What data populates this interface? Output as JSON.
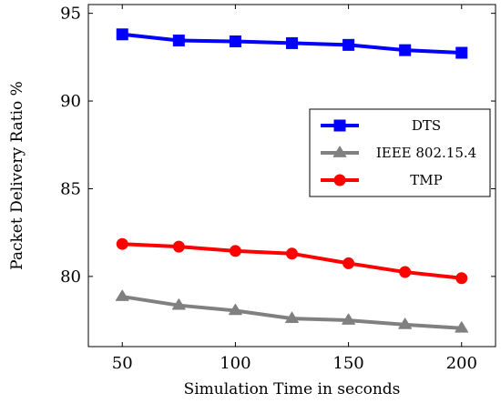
{
  "chart_data": {
    "type": "line",
    "xlabel": "Simulation Time in seconds",
    "ylabel": "Packet Delivery Ratio %",
    "x": [
      50,
      75,
      100,
      125,
      150,
      175,
      200
    ],
    "xlim": [
      35,
      215
    ],
    "ylim": [
      76,
      95.5
    ],
    "xticks": [
      50,
      100,
      150,
      200
    ],
    "yticks": [
      80,
      85,
      90,
      95
    ],
    "legend_position": "center-right",
    "grid": false,
    "series": [
      {
        "name": "DTS",
        "color": "#0000ff",
        "marker": "square",
        "values": [
          93.8,
          93.45,
          93.4,
          93.3,
          93.2,
          92.9,
          92.75
        ]
      },
      {
        "name": "IEEE 802.15.4",
        "color": "#808080",
        "marker": "triangle",
        "values": [
          78.85,
          78.35,
          78.05,
          77.6,
          77.5,
          77.25,
          77.05
        ]
      },
      {
        "name": "TMP",
        "color": "#ff0000",
        "marker": "circle",
        "values": [
          81.85,
          81.7,
          81.45,
          81.3,
          80.75,
          80.25,
          79.9
        ]
      }
    ]
  }
}
